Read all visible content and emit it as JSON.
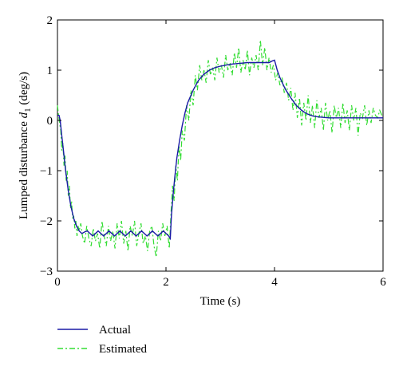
{
  "chart_data": {
    "type": "line",
    "title": "",
    "xlabel": "Time (s)",
    "ylabel": "Lumped disturbance d1 (deg/s)",
    "ylabel_parts": {
      "main": "Lumped disturbance ",
      "var": "d",
      "sub": "1",
      "unit": " (deg/s)"
    },
    "xlim": [
      0,
      6
    ],
    "ylim": [
      -3,
      2
    ],
    "xticks": [
      0,
      2,
      4,
      6
    ],
    "yticks": [
      -3,
      -2,
      -1,
      0,
      1,
      2
    ],
    "grid": false,
    "legend_position": "below-left",
    "series": [
      {
        "name": "Actual",
        "color": "#1a1aa6",
        "dash": "solid",
        "x": [
          0,
          0.03,
          0.05,
          0.08,
          0.12,
          0.15,
          0.2,
          0.25,
          0.3,
          0.35,
          0.4,
          0.45,
          0.5,
          0.55,
          0.6,
          0.65,
          0.7,
          0.75,
          0.8,
          0.85,
          0.9,
          0.95,
          1.0,
          1.05,
          1.1,
          1.15,
          1.2,
          1.25,
          1.3,
          1.35,
          1.4,
          1.45,
          1.5,
          1.55,
          1.6,
          1.65,
          1.7,
          1.75,
          1.8,
          1.85,
          1.9,
          1.95,
          2.0,
          2.05,
          2.08,
          2.1,
          2.13,
          2.16,
          2.2,
          2.25,
          2.3,
          2.35,
          2.4,
          2.5,
          2.6,
          2.7,
          2.8,
          2.9,
          3.0,
          3.1,
          3.2,
          3.3,
          3.4,
          3.5,
          3.6,
          3.7,
          3.8,
          3.9,
          3.95,
          4.0,
          4.02,
          4.05,
          4.1,
          4.2,
          4.3,
          4.4,
          4.5,
          4.6,
          4.7,
          4.8,
          5.0,
          5.2,
          5.4,
          5.6,
          5.8,
          6.0
        ],
        "y": [
          0.1,
          0.1,
          0.0,
          -0.3,
          -0.7,
          -1.0,
          -1.4,
          -1.72,
          -1.95,
          -2.1,
          -2.2,
          -2.25,
          -2.22,
          -2.2,
          -2.25,
          -2.3,
          -2.25,
          -2.2,
          -2.25,
          -2.3,
          -2.25,
          -2.2,
          -2.25,
          -2.3,
          -2.25,
          -2.2,
          -2.25,
          -2.3,
          -2.25,
          -2.2,
          -2.25,
          -2.3,
          -2.25,
          -2.2,
          -2.25,
          -2.3,
          -2.25,
          -2.2,
          -2.25,
          -2.3,
          -2.25,
          -2.2,
          -2.25,
          -2.3,
          -2.35,
          -1.9,
          -1.5,
          -1.15,
          -0.75,
          -0.4,
          -0.1,
          0.15,
          0.35,
          0.6,
          0.8,
          0.92,
          1.0,
          1.05,
          1.08,
          1.1,
          1.12,
          1.13,
          1.14,
          1.15,
          1.15,
          1.15,
          1.15,
          1.15,
          1.18,
          1.2,
          1.12,
          1.0,
          0.85,
          0.62,
          0.45,
          0.3,
          0.2,
          0.13,
          0.09,
          0.07,
          0.05,
          0.05,
          0.05,
          0.05,
          0.05,
          0.05
        ]
      },
      {
        "name": "Estimated",
        "color": "#33dd33",
        "dash": "dashdot",
        "x": [
          0,
          0.02,
          0.04,
          0.06,
          0.08,
          0.1,
          0.12,
          0.14,
          0.16,
          0.18,
          0.2,
          0.22,
          0.24,
          0.26,
          0.28,
          0.3,
          0.32,
          0.34,
          0.36,
          0.38,
          0.4,
          0.43,
          0.46,
          0.5,
          0.54,
          0.58,
          0.62,
          0.66,
          0.7,
          0.74,
          0.78,
          0.82,
          0.86,
          0.9,
          0.94,
          0.98,
          1.02,
          1.06,
          1.1,
          1.14,
          1.18,
          1.22,
          1.26,
          1.3,
          1.34,
          1.38,
          1.42,
          1.46,
          1.5,
          1.54,
          1.58,
          1.62,
          1.66,
          1.7,
          1.74,
          1.78,
          1.82,
          1.86,
          1.9,
          1.94,
          1.98,
          2.02,
          2.06,
          2.09,
          2.12,
          2.15,
          2.18,
          2.21,
          2.24,
          2.27,
          2.3,
          2.34,
          2.38,
          2.42,
          2.46,
          2.5,
          2.54,
          2.58,
          2.62,
          2.66,
          2.7,
          2.74,
          2.78,
          2.82,
          2.86,
          2.9,
          2.94,
          2.98,
          3.02,
          3.06,
          3.1,
          3.14,
          3.18,
          3.22,
          3.26,
          3.3,
          3.34,
          3.38,
          3.42,
          3.46,
          3.5,
          3.54,
          3.58,
          3.62,
          3.66,
          3.7,
          3.74,
          3.78,
          3.82,
          3.86,
          3.9,
          3.94,
          3.98,
          4.02,
          4.06,
          4.1,
          4.14,
          4.18,
          4.22,
          4.26,
          4.3,
          4.34,
          4.38,
          4.42,
          4.46,
          4.5,
          4.54,
          4.58,
          4.62,
          4.66,
          4.7,
          4.74,
          4.78,
          4.82,
          4.86,
          4.9,
          4.94,
          4.98,
          5.02,
          5.06,
          5.1,
          5.14,
          5.18,
          5.22,
          5.26,
          5.3,
          5.34,
          5.38,
          5.42,
          5.46,
          5.5,
          5.54,
          5.58,
          5.62,
          5.66,
          5.7,
          5.74,
          5.78,
          5.82,
          5.86,
          5.9,
          5.94,
          5.98
        ],
        "y": [
          0.3,
          0.1,
          -0.05,
          -0.2,
          -0.6,
          -0.45,
          -0.9,
          -0.7,
          -1.2,
          -1.0,
          -1.5,
          -1.3,
          -1.75,
          -1.6,
          -1.95,
          -1.9,
          -2.15,
          -2.0,
          -2.3,
          -2.1,
          -2.2,
          -2.05,
          -2.3,
          -2.45,
          -2.1,
          -2.35,
          -2.5,
          -2.15,
          -2.4,
          -2.25,
          -2.55,
          -2.0,
          -2.3,
          -2.5,
          -2.1,
          -2.4,
          -2.2,
          -2.55,
          -2.05,
          -2.35,
          -2.0,
          -2.45,
          -2.2,
          -2.6,
          -2.1,
          -2.3,
          -2.0,
          -2.5,
          -2.25,
          -2.05,
          -2.45,
          -2.3,
          -2.6,
          -2.2,
          -2.1,
          -2.5,
          -2.72,
          -2.2,
          -2.4,
          -2.05,
          -2.3,
          -2.1,
          -2.55,
          -1.9,
          -1.3,
          -1.6,
          -0.9,
          -1.2,
          -0.5,
          -0.8,
          -0.2,
          -0.4,
          0.3,
          0.0,
          0.6,
          0.3,
          0.9,
          0.6,
          1.1,
          0.8,
          1.0,
          0.75,
          1.2,
          0.9,
          1.05,
          0.8,
          1.25,
          0.95,
          1.1,
          0.85,
          1.3,
          1.0,
          1.15,
          0.9,
          1.35,
          1.05,
          1.45,
          0.95,
          1.2,
          1.0,
          1.4,
          0.9,
          1.25,
          1.05,
          1.3,
          1.0,
          1.6,
          1.1,
          1.45,
          1.0,
          1.25,
          0.95,
          1.1,
          0.8,
          0.95,
          0.7,
          0.85,
          0.55,
          0.75,
          0.4,
          0.65,
          0.2,
          0.55,
          0.05,
          0.45,
          -0.1,
          0.35,
          0.0,
          0.5,
          -0.05,
          0.3,
          -0.15,
          0.4,
          0.05,
          0.25,
          -0.2,
          0.35,
          0.0,
          0.2,
          -0.25,
          0.3,
          0.05,
          0.25,
          -0.15,
          0.35,
          -0.05,
          0.2,
          -0.2,
          0.3,
          0.0,
          0.25,
          -0.3,
          0.15,
          0.05,
          0.3,
          -0.1,
          0.2,
          -0.05,
          0.25,
          0.1,
          0.05,
          0.2,
          0.1
        ]
      }
    ]
  }
}
